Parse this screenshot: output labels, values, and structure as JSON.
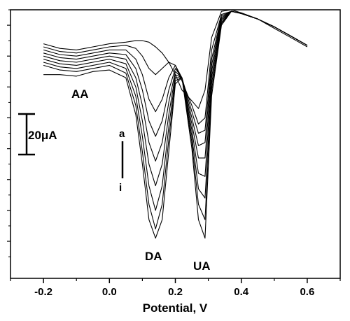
{
  "chart_data": {
    "type": "line",
    "title": "",
    "xlabel": "Potential, V",
    "ylabel": "",
    "xlim": [
      -0.3,
      0.7
    ],
    "ylim": [
      -8.7,
      0
    ],
    "x_ticks": [
      "-0.2",
      "0.0",
      "0.2",
      "0.4",
      "0.6"
    ],
    "x_tick_values": [
      -0.2,
      0.0,
      0.2,
      0.4,
      0.6
    ],
    "y_tick_values": [
      -7.5,
      -6.5,
      -5.5,
      -4.5,
      -3.5,
      -2.5,
      -1.5,
      -0.5
    ],
    "grid": false,
    "legend": "none",
    "line_color": "#000000",
    "annotations": {
      "aa": "AA",
      "da": "DA",
      "ua": "UA",
      "curve_start": "a",
      "curve_end": "i",
      "scale_bar": "20μA"
    },
    "scale_bar_microamp": 20,
    "series": [
      {
        "x": [
          -0.2,
          -0.15,
          -0.1,
          -0.05,
          0.0,
          0.05,
          0.08,
          0.1,
          0.12,
          0.14,
          0.16,
          0.18,
          0.2,
          0.22,
          0.25,
          0.27,
          0.29,
          0.31,
          0.34,
          0.37,
          0.4,
          0.45,
          0.5,
          0.55,
          0.6
        ],
        "y": [
          -1.1,
          -1.25,
          -1.3,
          -1.2,
          -1.1,
          -1.05,
          -1.0,
          -1.0,
          -1.05,
          -1.2,
          -1.4,
          -1.7,
          -2.1,
          -2.6,
          -2.95,
          -3.2,
          -2.6,
          -0.9,
          -0.05,
          -0.0,
          -0.1,
          -0.3,
          -0.6,
          -0.9,
          -1.2
        ]
      },
      {
        "x": [
          -0.2,
          -0.15,
          -0.1,
          -0.05,
          0.0,
          0.05,
          0.08,
          0.1,
          0.12,
          0.14,
          0.16,
          0.18,
          0.2,
          0.22,
          0.25,
          0.27,
          0.29,
          0.31,
          0.34,
          0.37,
          0.4,
          0.45,
          0.5,
          0.55,
          0.6
        ],
        "y": [
          -1.2,
          -1.35,
          -1.4,
          -1.3,
          -1.2,
          -1.15,
          -1.25,
          -1.5,
          -1.9,
          -2.1,
          -1.9,
          -1.7,
          -1.8,
          -2.3,
          -3.1,
          -3.7,
          -3.5,
          -1.3,
          -0.15,
          -0.05,
          -0.1,
          -0.3,
          -0.55,
          -0.85,
          -1.15
        ]
      },
      {
        "x": [
          -0.2,
          -0.15,
          -0.1,
          -0.05,
          0.0,
          0.05,
          0.08,
          0.1,
          0.12,
          0.14,
          0.16,
          0.18,
          0.2,
          0.22,
          0.25,
          0.27,
          0.29,
          0.31,
          0.34,
          0.37,
          0.4,
          0.45,
          0.5,
          0.55,
          0.6
        ],
        "y": [
          -1.3,
          -1.45,
          -1.5,
          -1.4,
          -1.3,
          -1.3,
          -1.6,
          -2.1,
          -2.9,
          -3.3,
          -2.9,
          -2.2,
          -1.8,
          -2.2,
          -3.3,
          -4.0,
          -3.9,
          -1.6,
          -0.2,
          -0.05,
          -0.12,
          -0.3,
          -0.55,
          -0.85,
          -1.15
        ]
      },
      {
        "x": [
          -0.2,
          -0.15,
          -0.1,
          -0.05,
          0.0,
          0.05,
          0.08,
          0.1,
          0.12,
          0.14,
          0.16,
          0.18,
          0.2,
          0.22,
          0.25,
          0.27,
          0.29,
          0.31,
          0.34,
          0.37,
          0.4,
          0.45,
          0.5,
          0.55,
          0.6
        ],
        "y": [
          -1.4,
          -1.55,
          -1.6,
          -1.5,
          -1.4,
          -1.45,
          -1.9,
          -2.6,
          -3.6,
          -4.1,
          -3.6,
          -2.6,
          -1.9,
          -2.2,
          -3.5,
          -4.4,
          -4.3,
          -1.8,
          -0.25,
          -0.05,
          -0.12,
          -0.3,
          -0.55,
          -0.85,
          -1.15
        ]
      },
      {
        "x": [
          -0.2,
          -0.15,
          -0.1,
          -0.05,
          0.0,
          0.05,
          0.08,
          0.1,
          0.12,
          0.14,
          0.16,
          0.18,
          0.2,
          0.22,
          0.25,
          0.27,
          0.29,
          0.31,
          0.34,
          0.37,
          0.4,
          0.45,
          0.5,
          0.55,
          0.6
        ],
        "y": [
          -1.5,
          -1.65,
          -1.7,
          -1.6,
          -1.5,
          -1.6,
          -2.2,
          -3.1,
          -4.3,
          -4.9,
          -4.3,
          -3.0,
          -2.0,
          -2.2,
          -3.7,
          -4.8,
          -4.8,
          -2.0,
          -0.3,
          -0.05,
          -0.12,
          -0.3,
          -0.55,
          -0.85,
          -1.15
        ]
      },
      {
        "x": [
          -0.2,
          -0.15,
          -0.1,
          -0.05,
          0.0,
          0.05,
          0.08,
          0.1,
          0.12,
          0.14,
          0.16,
          0.18,
          0.2,
          0.22,
          0.25,
          0.27,
          0.29,
          0.31,
          0.34,
          0.37,
          0.4,
          0.45,
          0.5,
          0.55,
          0.6
        ],
        "y": [
          -1.6,
          -1.75,
          -1.8,
          -1.7,
          -1.6,
          -1.75,
          -2.5,
          -3.6,
          -5.0,
          -5.7,
          -5.0,
          -3.4,
          -2.1,
          -2.2,
          -3.9,
          -5.3,
          -5.4,
          -2.2,
          -0.35,
          -0.05,
          -0.12,
          -0.3,
          -0.55,
          -0.85,
          -1.15
        ]
      },
      {
        "x": [
          -0.2,
          -0.15,
          -0.1,
          -0.05,
          0.0,
          0.05,
          0.08,
          0.1,
          0.12,
          0.14,
          0.16,
          0.18,
          0.2,
          0.22,
          0.25,
          0.27,
          0.29,
          0.31,
          0.34,
          0.37,
          0.4,
          0.45,
          0.5,
          0.55,
          0.6
        ],
        "y": [
          -1.7,
          -1.85,
          -1.9,
          -1.8,
          -1.7,
          -1.9,
          -2.8,
          -4.1,
          -5.7,
          -6.5,
          -5.7,
          -3.8,
          -2.2,
          -2.2,
          -4.1,
          -5.8,
          -6.1,
          -2.4,
          -0.4,
          -0.05,
          -0.12,
          -0.3,
          -0.55,
          -0.85,
          -1.15
        ]
      },
      {
        "x": [
          -0.2,
          -0.15,
          -0.1,
          -0.05,
          0.0,
          0.05,
          0.08,
          0.1,
          0.12,
          0.14,
          0.16,
          0.18,
          0.2,
          0.22,
          0.25,
          0.27,
          0.29,
          0.31,
          0.34,
          0.37,
          0.4,
          0.45,
          0.5,
          0.55,
          0.6
        ],
        "y": [
          -1.8,
          -1.95,
          -2.0,
          -1.9,
          -1.8,
          -2.05,
          -3.1,
          -4.6,
          -6.3,
          -7.1,
          -6.3,
          -4.2,
          -2.3,
          -2.2,
          -4.3,
          -6.3,
          -6.8,
          -2.6,
          -0.45,
          -0.05,
          -0.12,
          -0.3,
          -0.55,
          -0.85,
          -1.15
        ]
      },
      {
        "x": [
          -0.2,
          -0.15,
          -0.1,
          -0.05,
          0.0,
          0.05,
          0.08,
          0.1,
          0.12,
          0.14,
          0.16,
          0.18,
          0.2,
          0.22,
          0.25,
          0.27,
          0.29,
          0.31,
          0.34,
          0.37,
          0.4,
          0.45,
          0.5,
          0.55,
          0.6
        ],
        "y": [
          -2.1,
          -2.1,
          -2.15,
          -2.0,
          -1.95,
          -2.2,
          -3.4,
          -5.0,
          -6.8,
          -7.4,
          -6.8,
          -4.6,
          -2.4,
          -2.2,
          -4.5,
          -6.8,
          -7.4,
          -2.8,
          -0.5,
          -0.05,
          -0.12,
          -0.3,
          -0.55,
          -0.85,
          -1.15
        ]
      }
    ]
  }
}
